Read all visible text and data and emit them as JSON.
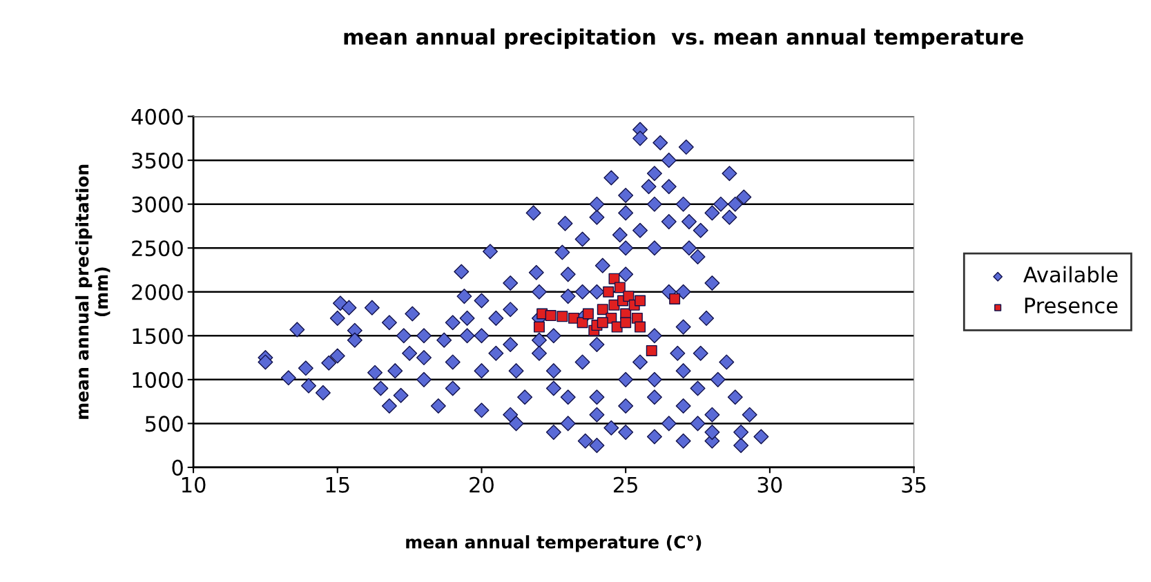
{
  "chart_data": {
    "type": "scatter",
    "title": "mean annual precipitation  vs. mean annual temperature",
    "xlabel": "mean annual temperature (C°)",
    "ylabel": "mean annual precipitation\n(mm)",
    "xlim": [
      10,
      35
    ],
    "xticks": [
      10,
      15,
      20,
      25,
      30,
      35
    ],
    "ylim": [
      0,
      4000
    ],
    "yticks": [
      0,
      500,
      1000,
      1500,
      2000,
      2500,
      3000,
      3500,
      4000
    ],
    "grid": "y",
    "legend": "right",
    "series": [
      {
        "name": "Available",
        "color": "#5a6ad6",
        "marker": "diamond",
        "x": [
          12.5,
          12.5,
          13.3,
          13.6,
          13.9,
          14,
          14.5,
          14.7,
          15,
          15.1,
          15,
          15.4,
          15.6,
          15.6,
          16.2,
          16.3,
          16.5,
          16.8,
          17,
          17.2,
          16.8,
          17.3,
          17.6,
          18,
          18.5,
          18.7,
          19.3,
          19.4,
          19.5,
          20.3,
          20,
          20.5,
          21,
          21.2,
          21.2,
          21.8,
          21.9,
          22,
          22.5,
          22.5,
          22.9,
          22.8,
          23,
          23.5,
          23.6,
          24,
          24,
          24.2,
          24.5,
          24.8,
          25,
          25.5,
          25.5,
          26.2,
          26.5,
          27.1,
          27.2,
          27.6,
          28,
          28.3,
          28.6,
          28.8,
          29.1,
          28.6,
          26,
          26.5,
          27,
          27.5,
          28,
          27.8,
          27.6,
          28.2,
          28.8,
          29.3,
          29.7,
          29,
          28,
          27,
          26,
          25,
          24.5,
          23,
          25,
          24,
          23.5,
          22,
          21,
          20,
          19,
          19,
          18,
          19.5,
          20.5,
          22,
          23,
          24,
          25,
          26,
          26.5,
          26,
          27,
          27,
          26,
          27,
          28,
          25,
          24,
          22.5,
          21.5,
          23,
          26.5,
          25.5,
          25,
          25.8,
          27,
          28.5,
          29,
          28,
          27.5,
          26.5,
          20,
          18,
          17.5,
          19,
          21,
          24,
          23.5,
          22.5,
          26,
          25.5,
          27.5,
          24.5,
          24,
          26,
          25,
          27.2,
          26.8,
          22,
          23.5,
          20,
          21
        ],
        "values": [
          1250,
          1200,
          1020,
          1570,
          1130,
          930,
          850,
          1190,
          1270,
          1870,
          1700,
          1820,
          1560,
          1450,
          1820,
          1080,
          900,
          700,
          1100,
          820,
          1650,
          1500,
          1750,
          1250,
          700,
          1450,
          2230,
          1950,
          1700,
          2460,
          650,
          1300,
          1800,
          500,
          1100,
          2900,
          2220,
          1450,
          900,
          400,
          2780,
          2450,
          1950,
          2600,
          300,
          250,
          2850,
          2300,
          3300,
          2650,
          2900,
          3850,
          3750,
          3700,
          3500,
          3650,
          2800,
          2700,
          2900,
          3000,
          3350,
          3000,
          3080,
          2850,
          3350,
          3200,
          3000,
          2400,
          2100,
          1700,
          1300,
          1000,
          800,
          600,
          350,
          250,
          300,
          300,
          350,
          400,
          450,
          500,
          1000,
          800,
          1200,
          1300,
          1400,
          1100,
          1200,
          900,
          1000,
          1500,
          1700,
          1700,
          2200,
          2000,
          2200,
          2500,
          2000,
          1500,
          1600,
          1100,
          800,
          700,
          600,
          700,
          1400,
          1100,
          800,
          800,
          2800,
          2700,
          3100,
          3200,
          2000,
          1200,
          400,
          400,
          500,
          500,
          1500,
          1500,
          1300,
          1650,
          600,
          600,
          2000,
          1500,
          1000,
          1200,
          900,
          null,
          3000,
          3000,
          2500,
          2500,
          1300,
          2000,
          1700,
          1900,
          2100
        ]
      },
      {
        "name": "Presence",
        "color": "#e02020",
        "marker": "square",
        "x": [
          22,
          22.1,
          22.4,
          22.8,
          23.2,
          23.5,
          23.7,
          23.9,
          24,
          24.2,
          24.3,
          24.4,
          24.5,
          24.6,
          24.6,
          24.7,
          24.8,
          24.9,
          25,
          25,
          25.1,
          25.2,
          25.3,
          25.4,
          25.5,
          25.5,
          24.2,
          26.7,
          25.9
        ],
        "values": [
          1600,
          1750,
          1730,
          1720,
          1700,
          1650,
          1750,
          1560,
          1620,
          1800,
          null,
          2000,
          1700,
          2150,
          1850,
          1600,
          2050,
          1900,
          1750,
          1650,
          1950,
          null,
          1850,
          1700,
          1900,
          1600,
          1650,
          1920,
          1330
        ]
      }
    ]
  }
}
